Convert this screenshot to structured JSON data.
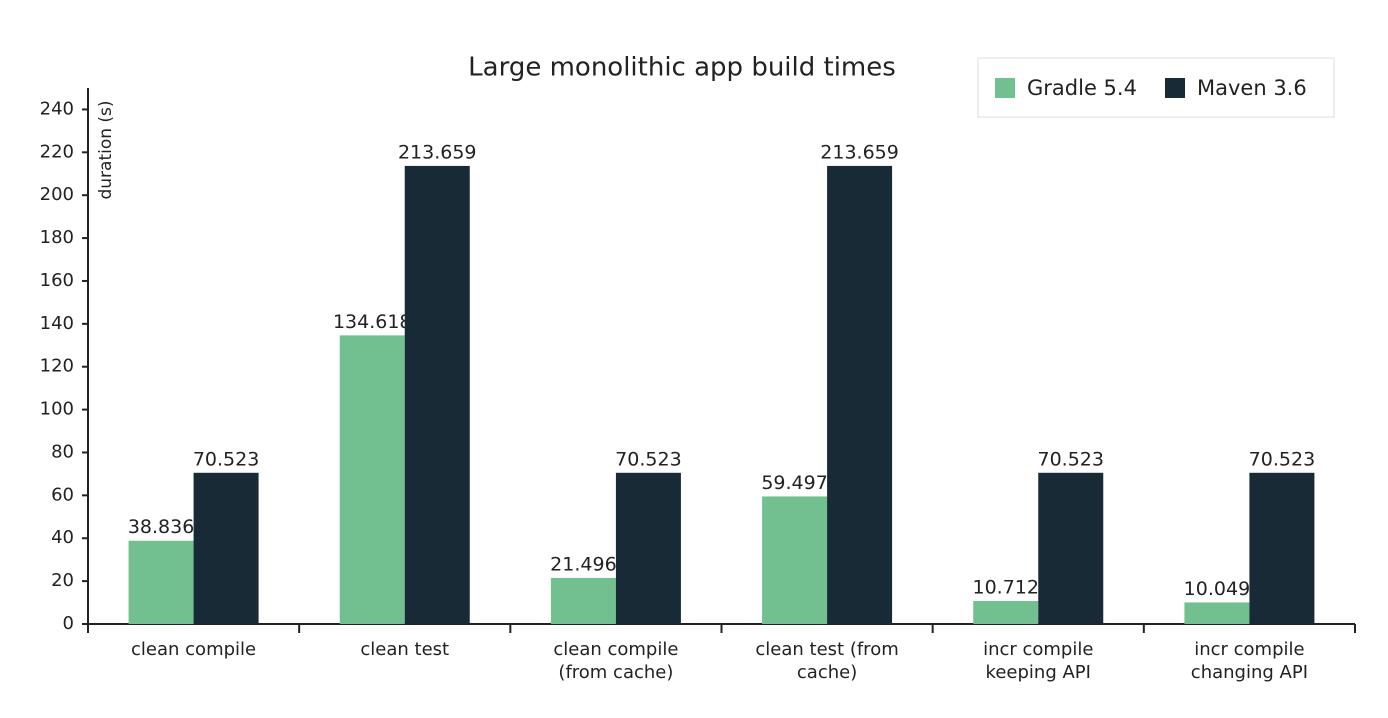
{
  "chart_data": {
    "type": "bar",
    "title": "Large monolithic app build times",
    "y_label": "duration (s)",
    "categories": [
      "clean compile",
      "clean test",
      "clean compile (from cache)",
      "clean test (from cache)",
      "incr compile keeping API",
      "incr compile changing API"
    ],
    "series": [
      {
        "name": "Gradle 5.4",
        "color": "#72bf8f",
        "values": [
          38.836,
          134.618,
          21.496,
          59.497,
          10.712,
          10.049
        ]
      },
      {
        "name": "Maven 3.6",
        "color": "#172a35",
        "values": [
          70.523,
          213.659,
          70.523,
          213.659,
          70.523,
          70.523
        ]
      }
    ],
    "ylim": [
      0,
      250
    ],
    "yticks": [
      0,
      20,
      40,
      60,
      80,
      100,
      120,
      140,
      160,
      180,
      200,
      220,
      240
    ],
    "legend": "top-right"
  }
}
